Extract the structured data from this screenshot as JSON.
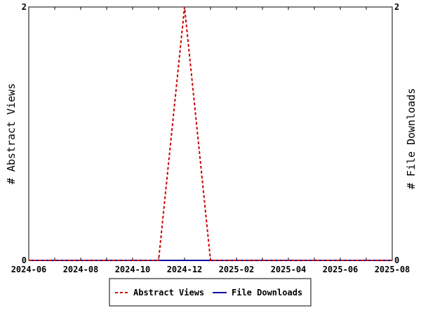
{
  "chart_data": {
    "type": "line",
    "x": [
      "2024-06",
      "2024-07",
      "2024-08",
      "2024-09",
      "2024-10",
      "2024-11",
      "2024-12",
      "2025-01",
      "2025-02",
      "2025-03",
      "2025-04",
      "2025-05",
      "2025-06",
      "2025-07",
      "2025-08"
    ],
    "series": [
      {
        "name": "Abstract Views",
        "axis": "left",
        "color": "#cc0000",
        "dash": "dashed",
        "values": [
          0,
          0,
          0,
          0,
          0,
          0,
          2,
          0,
          0,
          0,
          0,
          0,
          0,
          0,
          0
        ]
      },
      {
        "name": "File Downloads",
        "axis": "right",
        "color": "#000099",
        "dash": "solid",
        "values": [
          0,
          0,
          0,
          0,
          0,
          0,
          0,
          0,
          0,
          0,
          0,
          0,
          0,
          0,
          0
        ]
      }
    ],
    "x_tick_labels": [
      "2024-06",
      "2024-08",
      "2024-10",
      "2024-12",
      "2025-02",
      "2025-04",
      "2025-06",
      "2025-08"
    ],
    "ylabel_left": "# Abstract Views",
    "ylabel_right": "# File Downloads",
    "ylim_left": [
      0,
      2
    ],
    "ylim_right": [
      0,
      2
    ],
    "y_ticks_left": [
      "0",
      "2"
    ],
    "y_ticks_right": [
      "0",
      "2"
    ],
    "grid": false,
    "legend_position": "bottom-center"
  }
}
